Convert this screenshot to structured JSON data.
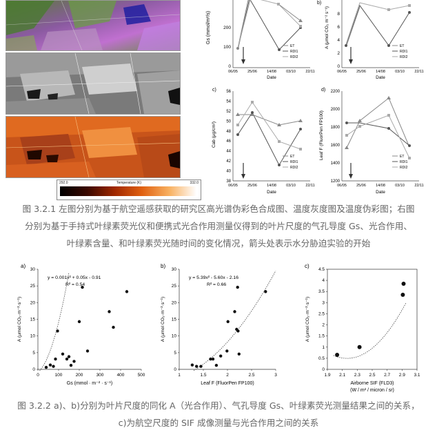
{
  "top_left_images": {
    "colorbar": {
      "min": "292.0",
      "max": "332.0",
      "title": "Temperature (K)"
    }
  },
  "fig321_plots": {
    "date_ticks": [
      "06/05",
      "25/06",
      "14/08",
      "03/10",
      "22/11"
    ],
    "legend": [
      "ET",
      "RDI1",
      "RDI2"
    ],
    "xlabel": "Date",
    "a": {
      "ylabel": "Gs (mmol/m²/s)",
      "yticks": [
        "0",
        "100",
        "200"
      ]
    },
    "b": {
      "letter": "b)",
      "ylabel": "A (μmol CO₂ m⁻² s⁻¹)",
      "yticks": [
        "0",
        "2",
        "4",
        "6",
        "8"
      ]
    },
    "c": {
      "letter": "c)",
      "ylabel": "Cab (μg/cm²)",
      "yticks": [
        "38",
        "40",
        "42",
        "44",
        "46",
        "48",
        "50",
        "52",
        "54",
        "56"
      ]
    },
    "d": {
      "letter": "d)",
      "ylabel": "Leaf F (FluorPen FP100)",
      "yticks": [
        "1200",
        "1400",
        "1600",
        "1800",
        "2000",
        "2200"
      ]
    }
  },
  "caption_321": "图 3.2.1 左图分别为基于航空遥感获取的研究区高光谱伪彩色合成图、温度灰度图及温度伪彩图；右图分别为基于手持式叶绿素荧光仪和便携式光合作用测量仪得到的叶片尺度的气孔导度 Gs、光合作用、叶绿素含量、和叶绿素荧光随时间的变化情况，箭头处表示水分胁迫实验的开始",
  "caption_321_lines": [
    "图 3.2.1 左图分别为基于航空遥感获取的研究区高光谱伪彩色合成图、温度灰度图及温度伪彩图；右图",
    "分别为基于手持式叶绿素荧光仪和便携式光合作用测量仪得到的叶片尺度的气孔导度 Gs、光合作用、",
    "叶绿素含量、和叶绿素荧光随时间的变化情况，箭头处表示水分胁迫实验的开始"
  ],
  "caption_322_lines": [
    "图 3.2.2 a)、b)分别为叶片尺度的同化 A（光合作用）、气孔导度 Gs、叶绿素荧光测量结果之间的关系，",
    "c)为航空尺度的 SIF 成像测量与光合作用之间的关系"
  ],
  "chart_data": [
    {
      "type": "scatter",
      "title": "a)",
      "equation": "y = 0.001x² + 0.05x - 0.91",
      "r2": "R² = 0.54",
      "xlabel": "Gs (mmol · m⁻² · s⁻¹)",
      "ylabel": "A (μmol CO₂·m⁻²·s⁻¹)",
      "xlim": [
        0,
        500
      ],
      "ylim": [
        0,
        30
      ],
      "xticks": [
        "0",
        "100",
        "200",
        "300",
        "400",
        "500"
      ],
      "yticks": [
        "0",
        "5",
        "10",
        "15",
        "20",
        "25",
        "30"
      ],
      "x": [
        40,
        60,
        75,
        85,
        95,
        120,
        140,
        150,
        160,
        175,
        200,
        215,
        240,
        345,
        365,
        430
      ],
      "y": [
        0.6,
        1.3,
        0.9,
        3.1,
        11.5,
        4.6,
        3.1,
        3.8,
        1.2,
        2.4,
        14.3,
        24.6,
        5.5,
        17.3,
        12.6,
        23.3
      ]
    },
    {
      "type": "scatter",
      "title": "b)",
      "equation": "y = 5.39x² - 5.60x - 2.16",
      "r2": "R² = 0.66",
      "xlabel": "Leaf F (FluorPen FP100)",
      "ylabel": "A (μmol CO₂·m⁻²·s⁻¹)",
      "xlim": [
        1,
        3
      ],
      "ylim": [
        0,
        30
      ],
      "xticks": [
        "1",
        "1.5",
        "2",
        "2.5",
        "3"
      ],
      "yticks": [
        "0",
        "5",
        "10",
        "15",
        "20",
        "25",
        "30"
      ],
      "x": [
        1.27,
        1.36,
        1.45,
        1.65,
        1.7,
        1.77,
        1.86,
        1.99,
        2.01,
        2.15,
        2.19,
        2.21,
        2.22,
        2.24,
        2.79
      ],
      "y": [
        1.3,
        0.9,
        0.9,
        3.1,
        3.1,
        1.2,
        4.0,
        5.5,
        14.3,
        17.3,
        12.0,
        24.6,
        11.5,
        4.6,
        23.3
      ]
    },
    {
      "type": "scatter",
      "title": "c)",
      "xlabel": "Airborne SIF (FLD3)",
      "xunits": "(W / m² / micron / sr)",
      "ylabel": "A (μmol CO₂·m⁻²·s⁻¹)",
      "xlim": [
        1.9,
        3.1
      ],
      "ylim": [
        0,
        4.5
      ],
      "xticks": [
        "1.9",
        "2.1",
        "2.3",
        "2.5",
        "2.7",
        "2.9",
        "3.1"
      ],
      "yticks": [
        "0",
        "0.5",
        "1",
        "1.5",
        "2",
        "2.5",
        "3",
        "3.5",
        "4",
        "4.5"
      ],
      "x": [
        2.03,
        2.33,
        2.91,
        2.92
      ],
      "y": [
        0.65,
        1.0,
        3.35,
        3.85
      ]
    }
  ]
}
